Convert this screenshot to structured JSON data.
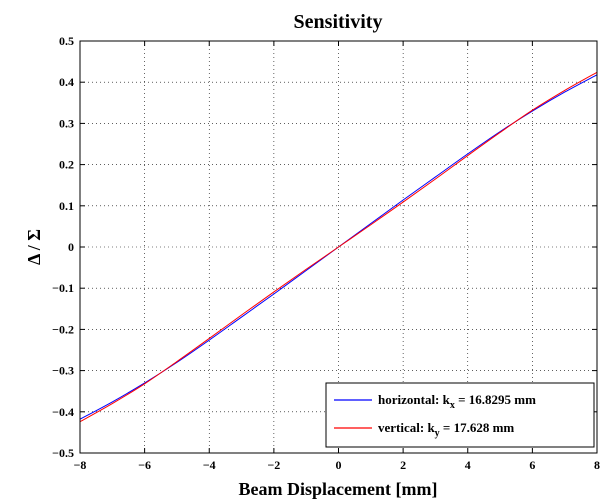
{
  "chart_data": {
    "type": "line",
    "title": "Sensitivity",
    "xlabel": "Beam Displacement [mm]",
    "ylabel": "Δ / Σ",
    "xlim": [
      -8,
      8
    ],
    "ylim": [
      -0.5,
      0.5
    ],
    "xticks": [
      -8,
      -6,
      -4,
      -2,
      0,
      2,
      4,
      6,
      8
    ],
    "yticks": [
      -0.5,
      -0.4,
      -0.3,
      -0.2,
      -0.1,
      0,
      0.1,
      0.2,
      0.3,
      0.4,
      0.5
    ],
    "xtick_labels": [
      "−8",
      "−6",
      "−4",
      "−2",
      "0",
      "2",
      "4",
      "6",
      "8"
    ],
    "ytick_labels": [
      "−0.5",
      "−0.4",
      "−0.3",
      "−0.2",
      "−0.1",
      "0",
      "0.1",
      "0.2",
      "0.3",
      "0.4",
      "0.5"
    ],
    "grid": true,
    "legend_position": "bottom-right",
    "x": [
      -8,
      -7,
      -6,
      -5,
      -4,
      -3,
      -2,
      -1,
      0,
      1,
      2,
      3,
      4,
      5,
      6,
      7,
      8
    ],
    "series": [
      {
        "name": "horizontal",
        "legend_main": "horizontal: k",
        "legend_sub": "x",
        "legend_tail": " = 16.8295 mm",
        "color": "#0000ff",
        "values": [
          -0.418,
          -0.376,
          -0.33,
          -0.28,
          -0.226,
          -0.17,
          -0.114,
          -0.057,
          0,
          0.057,
          0.114,
          0.17,
          0.226,
          0.28,
          0.33,
          0.376,
          0.418
        ]
      },
      {
        "name": "vertical",
        "legend_main": "vertical: k",
        "legend_sub": "y",
        "legend_tail": " = 17.628 mm",
        "color": "#ff0000",
        "values": [
          -0.424,
          -0.38,
          -0.332,
          -0.278,
          -0.222,
          -0.165,
          -0.109,
          -0.054,
          0,
          0.054,
          0.109,
          0.165,
          0.222,
          0.278,
          0.332,
          0.38,
          0.424
        ]
      }
    ]
  }
}
